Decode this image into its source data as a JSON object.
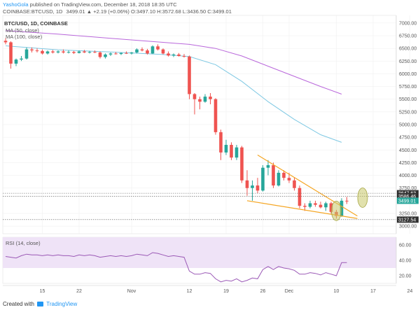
{
  "header": {
    "author": "YashoGola",
    "published_text": "published on TradingView.com, December 18, 2018 18:35 UTC"
  },
  "legend": {
    "symbol": "COINBASE:BTCUSD, 1D",
    "ohlc": "3499.01 ▲ +2.19 (+0.06%) O:3497.10 H:3572.68 L:3436.50 C:3499.01",
    "ma50": "MA (50, close)",
    "ma100": "MA (100, close)",
    "symbol_short": "BTC/USD, 1D, COINBASE"
  },
  "rsi": {
    "label": "RSI (14, close)"
  },
  "footer": {
    "created_with": "Created with",
    "brand": "TradingView"
  },
  "colors": {
    "up": "#26a69a",
    "down": "#ef5350",
    "ma50": "#7ec8e3",
    "ma100": "#b967db",
    "wedge": "#f5a623",
    "circle": "#c9c96a",
    "rsi_line": "#9b59b6",
    "rsi_band": "#efe3f7",
    "bg": "#ffffff",
    "grid": "#eeeeee"
  },
  "chart_data": {
    "type": "candlestick",
    "y_ticks": [
      7000,
      6750,
      6500,
      6250,
      6000,
      5750,
      5500,
      5250,
      5000,
      4750,
      4500,
      4250,
      4000,
      3750,
      3250,
      3000
    ],
    "ylim": [
      2850,
      7150
    ],
    "x_ticks": [
      {
        "label": "15",
        "index": 7
      },
      {
        "label": "22",
        "index": 14
      },
      {
        "label": "Nov",
        "index": 24
      },
      {
        "label": "12",
        "index": 35
      },
      {
        "label": "19",
        "index": 42
      },
      {
        "label": "26",
        "index": 49
      },
      {
        "label": "Dec",
        "index": 54
      },
      {
        "label": "10",
        "index": 63
      },
      {
        "label": "17",
        "index": 70
      },
      {
        "label": "24",
        "index": 77
      }
    ],
    "price_tags": [
      {
        "value": 3647.63,
        "text": "3647.63",
        "color": "#333333"
      },
      {
        "value": 3586.46,
        "text": "3586.46",
        "color": "#333333"
      },
      {
        "value": 3499.01,
        "text": "3499.01",
        "color": "#26a69a"
      },
      {
        "value": 3127.54,
        "text": "3127.54",
        "color": "#333333"
      }
    ],
    "candles": [
      {
        "o": 6650,
        "h": 6700,
        "l": 6580,
        "c": 6620
      },
      {
        "o": 6620,
        "h": 6640,
        "l": 6100,
        "c": 6200
      },
      {
        "o": 6200,
        "h": 6300,
        "l": 6150,
        "c": 6280
      },
      {
        "o": 6280,
        "h": 6350,
        "l": 6250,
        "c": 6300
      },
      {
        "o": 6300,
        "h": 6520,
        "l": 6280,
        "c": 6480
      },
      {
        "o": 6480,
        "h": 6520,
        "l": 6420,
        "c": 6460
      },
      {
        "o": 6460,
        "h": 6500,
        "l": 6420,
        "c": 6450
      },
      {
        "o": 6450,
        "h": 6480,
        "l": 6380,
        "c": 6400
      },
      {
        "o": 6400,
        "h": 6460,
        "l": 6380,
        "c": 6440
      },
      {
        "o": 6440,
        "h": 6470,
        "l": 6400,
        "c": 6420
      },
      {
        "o": 6420,
        "h": 6460,
        "l": 6400,
        "c": 6440
      },
      {
        "o": 6440,
        "h": 6480,
        "l": 6400,
        "c": 6420
      },
      {
        "o": 6420,
        "h": 6460,
        "l": 6400,
        "c": 6430
      },
      {
        "o": 6430,
        "h": 6450,
        "l": 6390,
        "c": 6410
      },
      {
        "o": 6410,
        "h": 6460,
        "l": 6400,
        "c": 6440
      },
      {
        "o": 6440,
        "h": 6470,
        "l": 6410,
        "c": 6420
      },
      {
        "o": 6420,
        "h": 6450,
        "l": 6400,
        "c": 6430
      },
      {
        "o": 6430,
        "h": 6460,
        "l": 6410,
        "c": 6420
      },
      {
        "o": 6420,
        "h": 6440,
        "l": 6300,
        "c": 6330
      },
      {
        "o": 6330,
        "h": 6400,
        "l": 6300,
        "c": 6380
      },
      {
        "o": 6380,
        "h": 6420,
        "l": 6350,
        "c": 6400
      },
      {
        "o": 6400,
        "h": 6430,
        "l": 6380,
        "c": 6390
      },
      {
        "o": 6390,
        "h": 6420,
        "l": 6370,
        "c": 6410
      },
      {
        "o": 6410,
        "h": 6440,
        "l": 6390,
        "c": 6400
      },
      {
        "o": 6400,
        "h": 6430,
        "l": 6380,
        "c": 6420
      },
      {
        "o": 6420,
        "h": 6500,
        "l": 6400,
        "c": 6480
      },
      {
        "o": 6480,
        "h": 6520,
        "l": 6440,
        "c": 6460
      },
      {
        "o": 6460,
        "h": 6490,
        "l": 6380,
        "c": 6400
      },
      {
        "o": 6400,
        "h": 6560,
        "l": 6390,
        "c": 6540
      },
      {
        "o": 6540,
        "h": 6580,
        "l": 6460,
        "c": 6480
      },
      {
        "o": 6480,
        "h": 6500,
        "l": 6380,
        "c": 6400
      },
      {
        "o": 6400,
        "h": 6440,
        "l": 6340,
        "c": 6360
      },
      {
        "o": 6360,
        "h": 6400,
        "l": 6330,
        "c": 6380
      },
      {
        "o": 6380,
        "h": 6410,
        "l": 6340,
        "c": 6350
      },
      {
        "o": 6350,
        "h": 6390,
        "l": 6320,
        "c": 6340
      },
      {
        "o": 6340,
        "h": 6360,
        "l": 5500,
        "c": 5600
      },
      {
        "o": 5600,
        "h": 5620,
        "l": 5200,
        "c": 5500
      },
      {
        "o": 5500,
        "h": 5550,
        "l": 5300,
        "c": 5450
      },
      {
        "o": 5450,
        "h": 5600,
        "l": 5430,
        "c": 5550
      },
      {
        "o": 5550,
        "h": 5620,
        "l": 5400,
        "c": 5500
      },
      {
        "o": 5500,
        "h": 5520,
        "l": 4800,
        "c": 4850
      },
      {
        "o": 4850,
        "h": 4900,
        "l": 4300,
        "c": 4450
      },
      {
        "o": 4450,
        "h": 4700,
        "l": 4400,
        "c": 4600
      },
      {
        "o": 4600,
        "h": 4650,
        "l": 4300,
        "c": 4350
      },
      {
        "o": 4350,
        "h": 4600,
        "l": 4300,
        "c": 4550
      },
      {
        "o": 4550,
        "h": 4580,
        "l": 3850,
        "c": 3900
      },
      {
        "o": 3900,
        "h": 4100,
        "l": 3600,
        "c": 3750
      },
      {
        "o": 3750,
        "h": 3900,
        "l": 3500,
        "c": 3800
      },
      {
        "o": 3800,
        "h": 3950,
        "l": 3650,
        "c": 3700
      },
      {
        "o": 3700,
        "h": 4200,
        "l": 3680,
        "c": 4150
      },
      {
        "o": 4150,
        "h": 4300,
        "l": 4000,
        "c": 4200
      },
      {
        "o": 4200,
        "h": 4250,
        "l": 3750,
        "c": 3800
      },
      {
        "o": 3800,
        "h": 4100,
        "l": 3780,
        "c": 4050
      },
      {
        "o": 4050,
        "h": 4100,
        "l": 3900,
        "c": 3950
      },
      {
        "o": 3950,
        "h": 4050,
        "l": 3850,
        "c": 3900
      },
      {
        "o": 3900,
        "h": 3950,
        "l": 3700,
        "c": 3750
      },
      {
        "o": 3750,
        "h": 3800,
        "l": 3350,
        "c": 3400
      },
      {
        "o": 3400,
        "h": 3450,
        "l": 3300,
        "c": 3380
      },
      {
        "o": 3380,
        "h": 3500,
        "l": 3350,
        "c": 3450
      },
      {
        "o": 3450,
        "h": 3500,
        "l": 3380,
        "c": 3420
      },
      {
        "o": 3420,
        "h": 3480,
        "l": 3350,
        "c": 3370
      },
      {
        "o": 3370,
        "h": 3480,
        "l": 3300,
        "c": 3450
      },
      {
        "o": 3450,
        "h": 3480,
        "l": 3250,
        "c": 3280
      },
      {
        "o": 3280,
        "h": 3320,
        "l": 3150,
        "c": 3200
      },
      {
        "o": 3200,
        "h": 3550,
        "l": 3180,
        "c": 3500
      },
      {
        "o": 3500,
        "h": 3573,
        "l": 3436,
        "c": 3499
      }
    ],
    "ma50": [
      [
        0,
        6550
      ],
      [
        10,
        6470
      ],
      [
        20,
        6430
      ],
      [
        30,
        6380
      ],
      [
        35,
        6340
      ],
      [
        40,
        6180
      ],
      [
        45,
        5850
      ],
      [
        50,
        5450
      ],
      [
        55,
        5100
      ],
      [
        60,
        4800
      ],
      [
        64,
        4650
      ]
    ],
    "ma100": [
      [
        0,
        6850
      ],
      [
        10,
        6780
      ],
      [
        20,
        6700
      ],
      [
        30,
        6620
      ],
      [
        35,
        6580
      ],
      [
        40,
        6500
      ],
      [
        45,
        6350
      ],
      [
        50,
        6150
      ],
      [
        55,
        5950
      ],
      [
        60,
        5750
      ],
      [
        64,
        5600
      ]
    ],
    "wedge_upper": [
      [
        48,
        4400
      ],
      [
        67,
        3200
      ]
    ],
    "wedge_lower": [
      [
        46,
        3500
      ],
      [
        67,
        3150
      ]
    ],
    "circles": [
      {
        "index": 63,
        "value": 3300
      },
      {
        "index": 68,
        "value": 3560
      }
    ],
    "rsi_ticks": [
      60,
      40,
      20
    ],
    "rsi_ylim": [
      10,
      70
    ],
    "rsi_band": [
      30,
      70
    ],
    "rsi_values": [
      45,
      44,
      43,
      46,
      48,
      47,
      47,
      46,
      47,
      46,
      47,
      46,
      46,
      45,
      47,
      46,
      47,
      46,
      44,
      45,
      46,
      45,
      46,
      45,
      46,
      48,
      47,
      46,
      50,
      49,
      47,
      45,
      46,
      45,
      44,
      26,
      22,
      22,
      24,
      23,
      16,
      12,
      14,
      13,
      16,
      12,
      14,
      17,
      16,
      28,
      32,
      28,
      32,
      30,
      29,
      27,
      22,
      22,
      24,
      23,
      21,
      24,
      22,
      20,
      37,
      37
    ]
  }
}
